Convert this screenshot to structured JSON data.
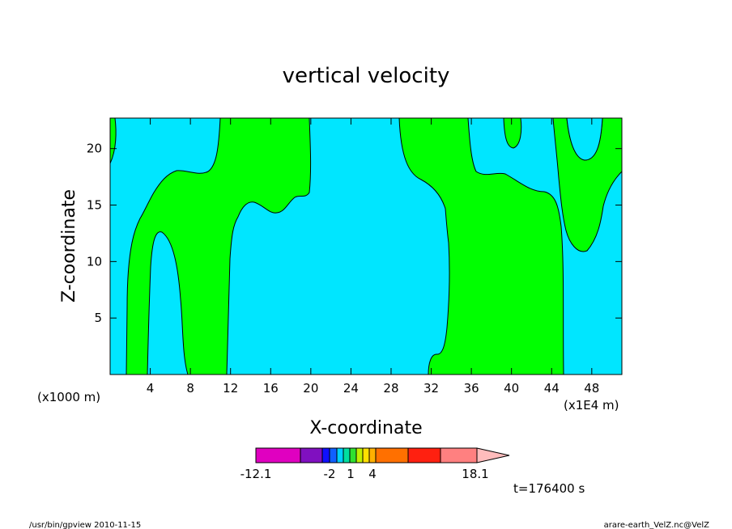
{
  "chart_data": {
    "type": "contour",
    "title": "vertical velocity",
    "xlabel": "X-coordinate",
    "ylabel": "Z-coordinate",
    "x_unit_left": "(x1000 m)",
    "x_unit_right": "(x1E4 m)",
    "xticks": [
      "4",
      "8",
      "12",
      "16",
      "20",
      "24",
      "28",
      "32",
      "36",
      "40",
      "44",
      "48"
    ],
    "yticks": [
      "5",
      "10",
      "15",
      "20"
    ],
    "xlim": [
      0,
      51
    ],
    "ylim": [
      0,
      22.7
    ],
    "colors": {
      "negative": "#00e6ff",
      "positive": "#00ff00",
      "contour_line": "#000000"
    },
    "colorbar": {
      "labels": [
        "-12.1",
        "-2",
        "1",
        "4",
        "18.1"
      ],
      "segments": [
        "#e000c0",
        "#8010c0",
        "#1010ff",
        "#1060ff",
        "#00d0ff",
        "#00e0a0",
        "#30e030",
        "#c0f000",
        "#ffe000",
        "#ffb000",
        "#ff7000",
        "#ff2010",
        "#ff8080"
      ],
      "extend_color": "#ffbcbc"
    },
    "time_label": "t=176400 s"
  },
  "footer": {
    "left": "/usr/bin/gpview 2010-11-15",
    "right": "arare-earth_VelZ.nc@VelZ"
  }
}
